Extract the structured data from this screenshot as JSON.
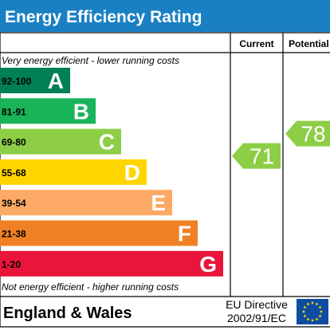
{
  "header": {
    "title": "Energy Efficiency Rating",
    "background": "#1a80c4"
  },
  "columns": {
    "current": "Current",
    "potential": "Potential"
  },
  "chart_data": {
    "type": "bar",
    "title": "Energy Efficiency Rating",
    "top_note": "Very energy efficient - lower running costs",
    "bottom_note": "Not energy efficient - higher running costs",
    "bands": [
      {
        "range": "92-100",
        "letter": "A",
        "color": "#008054"
      },
      {
        "range": "81-91",
        "letter": "B",
        "color": "#19b459"
      },
      {
        "range": "69-80",
        "letter": "C",
        "color": "#8dce46"
      },
      {
        "range": "55-68",
        "letter": "D",
        "color": "#ffd500"
      },
      {
        "range": "39-54",
        "letter": "E",
        "color": "#fcaa65"
      },
      {
        "range": "21-38",
        "letter": "F",
        "color": "#ef8023"
      },
      {
        "range": "1-20",
        "letter": "G",
        "color": "#e9153b"
      }
    ],
    "current": {
      "value": 71,
      "band": "C",
      "color": "#8dce46"
    },
    "potential": {
      "value": 78,
      "band": "C",
      "color": "#8dce46"
    }
  },
  "footer": {
    "region": "England & Wales",
    "directive_line1": "EU Directive",
    "directive_line2": "2002/91/EC",
    "flag_color": "#0e4ca1",
    "star_color": "#ffe600"
  }
}
